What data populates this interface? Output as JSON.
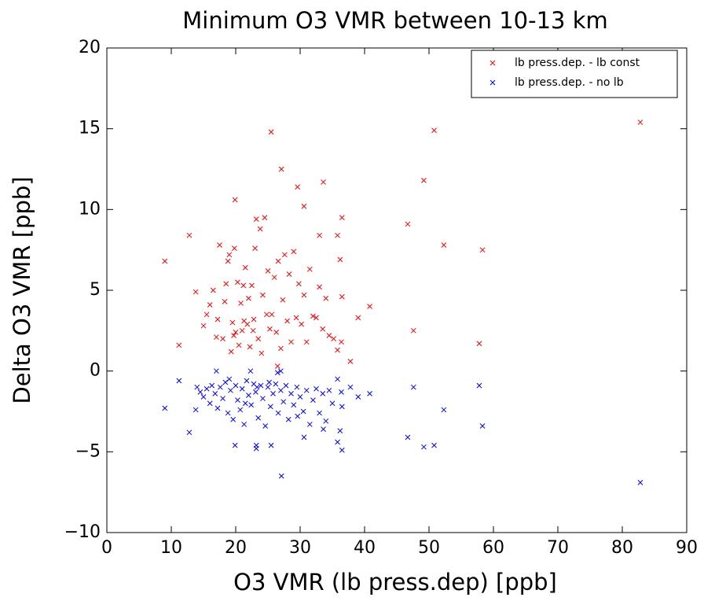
{
  "chart_data": {
    "type": "scatter",
    "title": "Minimum O3 VMR between 10-13 km",
    "x_label": "O3 VMR (lb press.dep) [ppb]",
    "y_label": "Delta O3 VMR [ppb]",
    "xlim": [
      0,
      90
    ],
    "ylim": [
      -10,
      20
    ],
    "xticks": [
      0,
      10,
      20,
      30,
      40,
      50,
      60,
      70,
      80,
      90
    ],
    "yticks": [
      {
        "value": -10,
        "label": "−10"
      },
      {
        "value": -5,
        "label": "−5"
      },
      0,
      5,
      10,
      15,
      20
    ],
    "legend": "upper right",
    "series": [
      {
        "name": "lb press.dep. - lb const",
        "color": "#ff0000",
        "x": [
          25.5,
          50.8,
          82.8,
          27.1,
          49.2,
          33.6,
          29.6,
          30.6,
          19.9,
          12.8,
          9,
          46.7,
          52.3,
          58.3,
          57.8,
          47.6,
          40.8,
          39.0,
          36.5,
          36.2,
          35.8,
          33.0,
          36.5,
          11.2,
          13.8,
          37.8,
          35.8,
          36.4,
          35.2,
          26.5,
          15,
          15.5,
          16,
          16.5,
          17,
          17.2,
          17.5,
          18,
          18.3,
          18.8,
          19,
          19.3,
          19.5,
          19.8,
          20,
          20.3,
          20.5,
          20.8,
          21,
          21.2,
          21.5,
          21.8,
          22,
          22.2,
          22.5,
          22.8,
          23,
          23.2,
          23.5,
          23.8,
          24,
          24.2,
          24.5,
          24.8,
          25,
          25.3,
          25.6,
          26,
          26.3,
          26.6,
          27,
          27.3,
          27.6,
          28,
          28.3,
          28.6,
          29,
          29.4,
          29.8,
          30.2,
          30.6,
          31,
          31.5,
          32,
          32.5,
          33,
          33.5,
          34,
          34.5,
          18.5,
          19.7,
          21.3,
          22.7
        ],
        "values": [
          14.8,
          14.9,
          15.4,
          12.5,
          11.8,
          11.7,
          11.4,
          10.2,
          10.6,
          8.4,
          6.8,
          9.1,
          7.8,
          7.5,
          1.7,
          2.5,
          4.0,
          3.3,
          4.6,
          6.9,
          8.4,
          8.4,
          9.5,
          1.6,
          4.9,
          0.6,
          1.3,
          1.8,
          2.0,
          0.3,
          2.8,
          3.5,
          4.1,
          5.0,
          2.1,
          3.2,
          7.8,
          2.0,
          4.3,
          6.8,
          7.2,
          1.2,
          3.0,
          7.6,
          2.4,
          5.5,
          1.6,
          4.2,
          2.5,
          5.3,
          6.4,
          2.9,
          4.5,
          1.5,
          5.3,
          3.2,
          7.6,
          9.4,
          2.0,
          8.8,
          1.1,
          4.7,
          9.5,
          3.5,
          6.2,
          2.6,
          3.5,
          5.8,
          2.4,
          6.8,
          1.4,
          4.4,
          7.2,
          3.1,
          6.0,
          1.8,
          7.4,
          3.3,
          5.4,
          2.9,
          4.7,
          1.8,
          6.3,
          3.4,
          3.3,
          5.2,
          2.6,
          4.5,
          2.2,
          5.4,
          2.2,
          3.1,
          2.5
        ]
      },
      {
        "name": "lb press.dep. - no lb",
        "color": "#0000ff",
        "x": [
          9,
          11.2,
          12.8,
          13.8,
          19.9,
          23.2,
          23.2,
          25.5,
          27.1,
          82.8,
          58.3,
          57.8,
          52.3,
          50.8,
          49.2,
          46.7,
          47.6,
          40.8,
          39,
          36.5,
          36.2,
          36.5,
          35.8,
          37.8,
          35.8,
          36.4,
          33.6,
          30.6,
          29.6,
          26.5,
          22.3,
          17,
          27,
          14,
          14.5,
          15,
          15.5,
          16,
          16.3,
          16.8,
          17.2,
          17.6,
          18,
          18.4,
          18.8,
          19.2,
          19.6,
          20,
          20.3,
          20.7,
          21,
          21.3,
          21.7,
          22,
          22.4,
          22.8,
          23.1,
          23.5,
          23.9,
          24.2,
          24.6,
          25,
          25.4,
          25.8,
          26.2,
          26.6,
          27,
          27.4,
          27.8,
          28.2,
          28.6,
          29,
          29.5,
          30,
          30.5,
          31,
          31.5,
          32,
          32.5,
          33,
          33.5,
          34,
          34.5,
          35,
          19,
          21.5,
          23.3,
          25.2
        ],
        "values": [
          -2.3,
          -0.6,
          -3.8,
          -2.4,
          -4.6,
          -4.6,
          -4.8,
          -4.6,
          -6.5,
          -6.9,
          -3.4,
          -0.9,
          -2.4,
          -4.6,
          -4.7,
          -4.1,
          -1.0,
          -1.4,
          -1.6,
          -2.2,
          -3.7,
          -4.9,
          -4.4,
          -1.0,
          -0.5,
          -1.3,
          -3.6,
          -4.1,
          -2.8,
          -0.1,
          0.0,
          0.0,
          0.0,
          -1.0,
          -1.3,
          -1.6,
          -1.1,
          -2.0,
          -0.9,
          -1.4,
          -2.3,
          -1.0,
          -1.7,
          -0.7,
          -2.6,
          -1.2,
          -3.0,
          -0.9,
          -1.8,
          -2.4,
          -1.1,
          -3.3,
          -0.6,
          -1.5,
          -2.1,
          -0.8,
          -1.3,
          -2.9,
          -0.9,
          -1.7,
          -3.4,
          -1.0,
          -2.2,
          -1.4,
          -0.8,
          -2.6,
          -1.2,
          -1.9,
          -0.9,
          -3.0,
          -1.4,
          -2.1,
          -1.0,
          -1.6,
          -2.5,
          -1.2,
          -3.3,
          -1.8,
          -1.1,
          -2.6,
          -1.4,
          -3.1,
          -1.2,
          -2.0,
          -0.5,
          -2.0,
          -1.0,
          -0.7
        ]
      }
    ]
  }
}
